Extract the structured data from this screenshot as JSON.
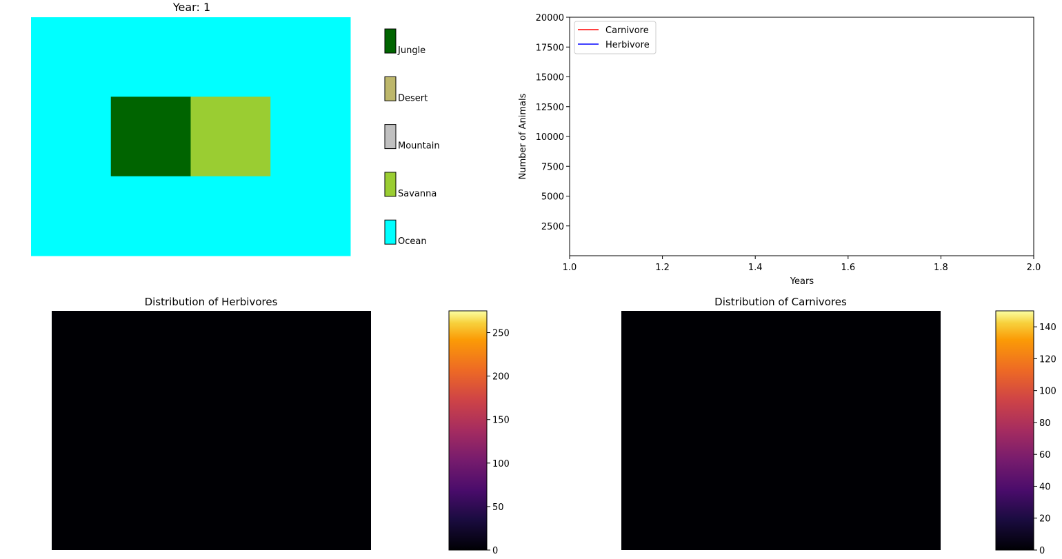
{
  "chart_data": [
    {
      "type": "heatmap",
      "panel": "island-map",
      "title": "Year: 1",
      "grid": [
        [
          "O",
          "O",
          "O",
          "O"
        ],
        [
          "O",
          "J",
          "S",
          "O"
        ],
        [
          "O",
          "O",
          "O",
          "O"
        ]
      ],
      "legend": [
        {
          "code": "J",
          "label": "Jungle",
          "color": "#006400"
        },
        {
          "code": "D",
          "label": "Desert",
          "color": "#BDB76B"
        },
        {
          "code": "M",
          "label": "Mountain",
          "color": "#C0C0C0"
        },
        {
          "code": "S",
          "label": "Savanna",
          "color": "#9ACD32"
        },
        {
          "code": "O",
          "label": "Ocean",
          "color": "#00FFFF"
        }
      ],
      "legend_placement": "right"
    },
    {
      "type": "line",
      "panel": "population-trend",
      "title": "",
      "xlabel": "Years",
      "ylabel": "Number of Animals",
      "xlim": [
        1.0,
        2.0
      ],
      "ylim": [
        0,
        20000
      ],
      "xticks": [
        "1.0",
        "1.2",
        "1.4",
        "1.6",
        "1.8",
        "2.0"
      ],
      "yticks": [
        "2500",
        "5000",
        "7500",
        "10000",
        "12500",
        "15000",
        "17500",
        "20000"
      ],
      "series": [
        {
          "name": "Carnivore",
          "color": "#ff0000",
          "x": [],
          "values": []
        },
        {
          "name": "Herbivore",
          "color": "#0000ff",
          "x": [],
          "values": []
        }
      ],
      "legend_placement": "top-left",
      "grid": false
    },
    {
      "type": "heatmap",
      "panel": "herbivore-distribution",
      "title": "Distribution of Herbivores",
      "cell_value": 0,
      "colormap": "inferno",
      "colorbar": {
        "min": 0,
        "max": 275,
        "ticks": [
          "0",
          "50",
          "100",
          "150",
          "200",
          "250"
        ]
      }
    },
    {
      "type": "heatmap",
      "panel": "carnivore-distribution",
      "title": "Distribution of Carnivores",
      "cell_value": 0,
      "colormap": "inferno",
      "colorbar": {
        "min": 0,
        "max": 150,
        "ticks": [
          "0",
          "20",
          "40",
          "60",
          "80",
          "100",
          "120",
          "140"
        ]
      }
    }
  ]
}
